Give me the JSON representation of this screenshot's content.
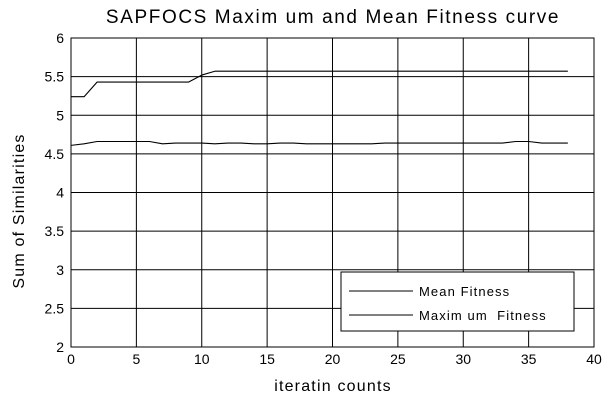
{
  "chart_data": {
    "type": "line",
    "title": "SAPFOCS Maxim um and Mean Fitness curve",
    "xlabel": "iteratin counts",
    "ylabel": "Sum of Similarities",
    "xlim": [
      0,
      40
    ],
    "ylim": [
      2,
      6
    ],
    "xticks": [
      "0",
      "5",
      "10",
      "15",
      "20",
      "25",
      "30",
      "35",
      "40"
    ],
    "yticks": [
      "2",
      "2.5",
      "3",
      "3.5",
      "4",
      "4.5",
      "5",
      "5.5",
      "6"
    ],
    "grid": true,
    "legend_position": "bottom-right",
    "line_color": "#000000",
    "series": [
      {
        "name": "Mean Fitness",
        "x": [
          0,
          1,
          2,
          3,
          4,
          5,
          6,
          7,
          8,
          9,
          10,
          11,
          12,
          13,
          14,
          15,
          16,
          17,
          18,
          19,
          20,
          21,
          22,
          23,
          24,
          25,
          26,
          27,
          28,
          29,
          30,
          31,
          32,
          33,
          34,
          35,
          36,
          37,
          38
        ],
        "values": [
          4.61,
          4.63,
          4.66,
          4.66,
          4.66,
          4.66,
          4.66,
          4.63,
          4.64,
          4.64,
          4.64,
          4.63,
          4.64,
          4.64,
          4.63,
          4.63,
          4.64,
          4.64,
          4.63,
          4.63,
          4.63,
          4.63,
          4.63,
          4.63,
          4.64,
          4.64,
          4.64,
          4.64,
          4.64,
          4.64,
          4.64,
          4.64,
          4.64,
          4.64,
          4.66,
          4.66,
          4.64,
          4.64,
          4.64
        ]
      },
      {
        "name": "Maxim um  Fitness",
        "x": [
          0,
          1,
          2,
          3,
          4,
          5,
          6,
          7,
          8,
          9,
          10,
          11,
          12,
          13,
          14,
          15,
          16,
          17,
          18,
          19,
          20,
          21,
          22,
          23,
          24,
          25,
          26,
          27,
          28,
          29,
          30,
          31,
          32,
          33,
          34,
          35,
          36,
          37,
          38
        ],
        "values": [
          5.24,
          5.24,
          5.43,
          5.43,
          5.43,
          5.43,
          5.43,
          5.43,
          5.43,
          5.43,
          5.52,
          5.57,
          5.57,
          5.57,
          5.57,
          5.57,
          5.57,
          5.57,
          5.57,
          5.57,
          5.57,
          5.57,
          5.57,
          5.57,
          5.57,
          5.57,
          5.57,
          5.57,
          5.57,
          5.57,
          5.57,
          5.57,
          5.57,
          5.57,
          5.57,
          5.57,
          5.57,
          5.57,
          5.57
        ]
      }
    ]
  }
}
